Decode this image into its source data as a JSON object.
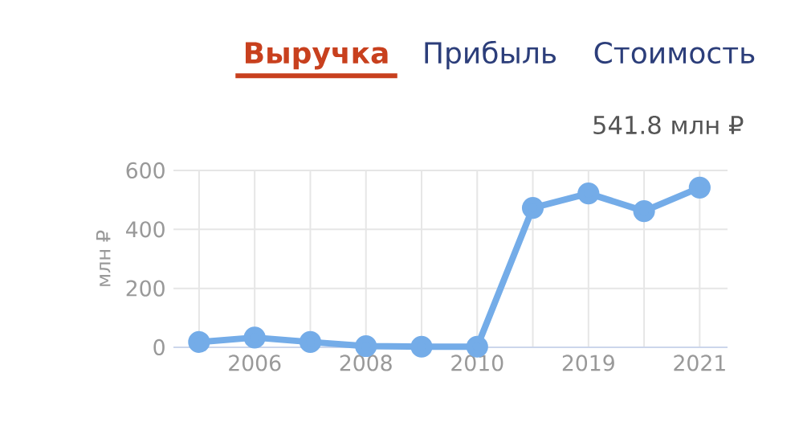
{
  "chart_data": {
    "type": "line",
    "title": "Выручка",
    "annotations": [
      "Прибыль",
      "Стоимость",
      "541.8 млн ₽"
    ],
    "ylabel": "млн ₽",
    "categories": [
      null,
      "2006",
      null,
      "2008",
      null,
      "2010",
      null,
      "2019",
      null,
      "2021"
    ],
    "series": [
      {
        "color": "#74ace8",
        "values": [
          18,
          33,
          18,
          4,
          2,
          2,
          473,
          522,
          462,
          541.8
        ]
      }
    ],
    "ylim": [
      0,
      600
    ],
    "yticks": [
      0,
      200,
      400,
      600
    ],
    "grid": true,
    "marker": "circle",
    "line_style": "solid"
  }
}
